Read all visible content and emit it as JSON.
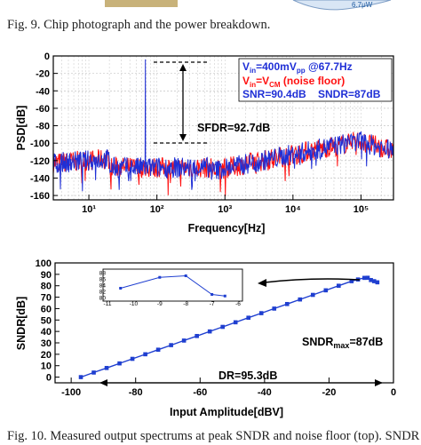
{
  "captions": {
    "fig9": "Fig. 9.  Chip photograph and the power breakdown.",
    "fig10": "Fig. 10. Measured output spectrums at peak SNDR and noise floor (top). SNDR",
    "photo_label": "6.7μW"
  },
  "colors": {
    "signal": "#1f2fd6",
    "noise": "#ff1010",
    "sndr": "#1f3fd0",
    "legend_text": "#1f2fd6",
    "legend_red": "#ff1010"
  },
  "psd": {
    "ylabel": "PSD[dB]",
    "xlabel": "Frequency[Hz]",
    "y_ticks": [
      "0",
      "-20",
      "-40",
      "-60",
      "-80",
      "-100",
      "-120",
      "-140",
      "-160"
    ],
    "x_ticks": [
      "10¹",
      "10²",
      "10³",
      "10⁴",
      "10⁵"
    ],
    "legend": {
      "line1_prefix": "V",
      "line1_sub": "in",
      "line1_mid": "=400mV",
      "line1_sub2": "pp",
      "line1_suffix": " @67.7Hz",
      "line2_prefix": "V",
      "line2_sub": "in",
      "line2_mid": "=V",
      "line2_sub2": "CM",
      "line2_suffix": " (noise floor)",
      "snr": "SNR=90.4dB",
      "sndr": "SNDR=87dB"
    },
    "sfdr_label": "SFDR=92.7dB"
  },
  "chart_data": [
    {
      "type": "line",
      "xlabel": "Frequency[Hz]",
      "ylabel": "PSD[dB]",
      "xscale": "log",
      "xlim": [
        3,
        300000
      ],
      "ylim": [
        -165,
        0
      ],
      "series": [
        {
          "name": "Vin=400mVpp @67.7Hz",
          "color": "#1f2fd6",
          "x": [
            3,
            10,
            30,
            67.7,
            100,
            300,
            1000,
            3000,
            10000,
            30000,
            100000,
            200000
          ],
          "y": [
            -120,
            -125,
            -128,
            -4,
            -130,
            -133,
            -130,
            -122,
            -110,
            -95,
            -92,
            -105
          ]
        },
        {
          "name": "Vin=VCM (noise floor)",
          "color": "#ff1010",
          "x": [
            3,
            10,
            30,
            100,
            300,
            1000,
            3000,
            10000,
            30000,
            100000,
            200000
          ],
          "y": [
            -110,
            -118,
            -125,
            -130,
            -133,
            -130,
            -122,
            -110,
            -95,
            -92,
            -105
          ]
        }
      ],
      "annotations": [
        "SNR=90.4dB",
        "SNDR=87dB",
        "SFDR=92.7dB"
      ]
    },
    {
      "type": "line",
      "xlabel": "Input Amplitude[dBV]",
      "ylabel": "SNDR[dB]",
      "xlim": [
        -105,
        0
      ],
      "ylim": [
        -5,
        100
      ],
      "x_ticks": [
        "-100",
        "-80",
        "-60",
        "-40",
        "-20",
        "0"
      ],
      "y_ticks": [
        "0",
        "10",
        "20",
        "30",
        "40",
        "50",
        "60",
        "70",
        "80",
        "90",
        "100"
      ],
      "series": [
        {
          "name": "SNDR",
          "x": [
            -97,
            -93,
            -89,
            -85,
            -81,
            -77,
            -73,
            -69,
            -65,
            -61,
            -57,
            -53,
            -49,
            -45,
            -41,
            -37,
            -33,
            -29,
            -25,
            -21,
            -17,
            -13,
            -11,
            -9,
            -8,
            -7,
            -6,
            -5
          ],
          "y": [
            0,
            4,
            8,
            12,
            16,
            20,
            24,
            28,
            32,
            36,
            40,
            44,
            48,
            52,
            56,
            60,
            64,
            68,
            72,
            76,
            80,
            84,
            85.5,
            86.9,
            87,
            85,
            84,
            83
          ]
        }
      ],
      "annotations": [
        "SNDRmax=87dB",
        "DR=95.3dB"
      ],
      "inset": {
        "xlim": [
          -11,
          -6
        ],
        "ylim": [
          80,
          88
        ],
        "x_ticks": [
          "-11",
          "-10",
          "-9",
          "-8",
          "-7",
          "-6"
        ],
        "y_ticks": [
          "80",
          "82",
          "84",
          "86",
          "88"
        ],
        "x": [
          -10.5,
          -9,
          -8,
          -7,
          -6.5
        ],
        "y": [
          83,
          86.5,
          87,
          81,
          80.5
        ]
      }
    }
  ],
  "sndr_plot": {
    "xlabel": "Input Amplitude[dBV]",
    "ylabel": "SNDR[dB]",
    "x_ticks": [
      "-100",
      "-80",
      "-60",
      "-40",
      "-20",
      "0"
    ],
    "y_ticks": [
      "0",
      "10",
      "20",
      "30",
      "40",
      "50",
      "60",
      "70",
      "80",
      "90",
      "100"
    ],
    "sndr_max_prefix": "SNDR",
    "sndr_max_sub": "max",
    "sndr_max_suffix": "=87dB",
    "dr_label": "DR=95.3dB",
    "inset_x_ticks": [
      "-11",
      "-10",
      "-9",
      "-8",
      "-7",
      "-6"
    ],
    "inset_y_ticks": [
      "80",
      "82",
      "84",
      "86",
      "88"
    ]
  }
}
